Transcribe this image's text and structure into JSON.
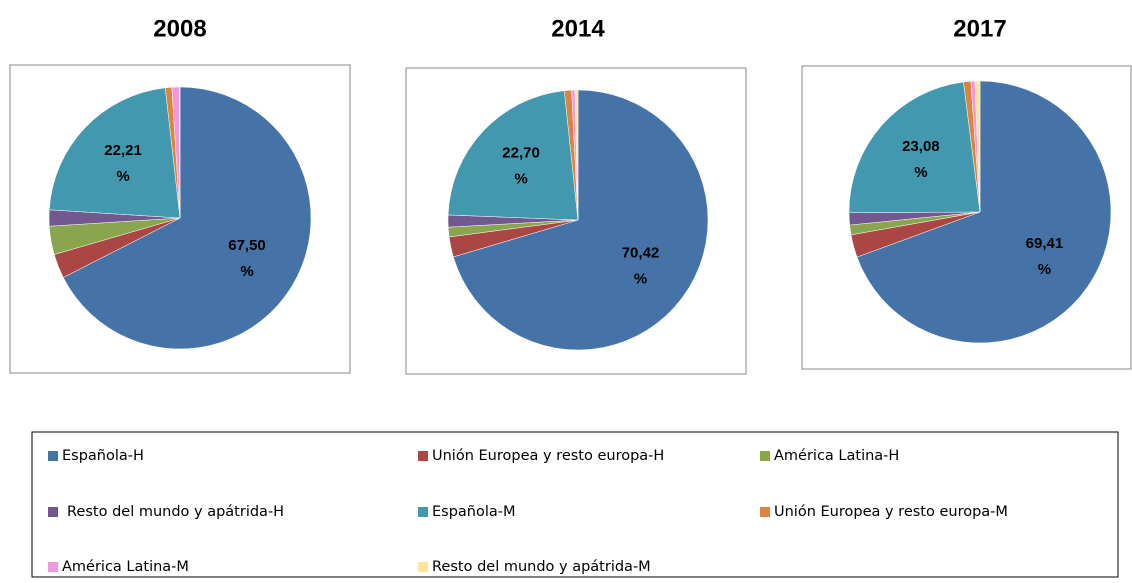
{
  "chart_data": [
    {
      "type": "pie",
      "title": "2008",
      "values": [
        67.5,
        3.0,
        3.5,
        2.0,
        22.21,
        0.8,
        0.9,
        0.09
      ],
      "value_labels": [
        "67,50 %",
        null,
        null,
        null,
        "22,21 %",
        null,
        null,
        null
      ]
    },
    {
      "type": "pie",
      "title": "2014",
      "values": [
        70.42,
        2.5,
        1.2,
        1.5,
        22.7,
        0.9,
        0.4,
        0.38
      ],
      "value_labels": [
        "70,42 %",
        null,
        null,
        null,
        "22,70 %",
        null,
        null,
        null
      ]
    },
    {
      "type": "pie",
      "title": "2017",
      "values": [
        69.41,
        2.8,
        1.2,
        1.5,
        23.08,
        0.9,
        0.5,
        0.61
      ],
      "value_labels": [
        "69,41 %",
        null,
        null,
        null,
        "23,08 %",
        null,
        null,
        null
      ]
    }
  ],
  "legend": {
    "categories": [
      "Española-H",
      "Unión Europea y resto europa-H",
      "América Latina-H",
      "Resto del mundo y apátrida-H",
      "Española-M",
      "Unión Europea y resto europa-M",
      "América Latina-M",
      "Resto del mundo y apátrida-M"
    ],
    "colors": [
      "#4572a7",
      "#aa4643",
      "#89a54e",
      "#71588f",
      "#4198af",
      "#db843d",
      "#f495e0",
      "#fde49b"
    ]
  }
}
